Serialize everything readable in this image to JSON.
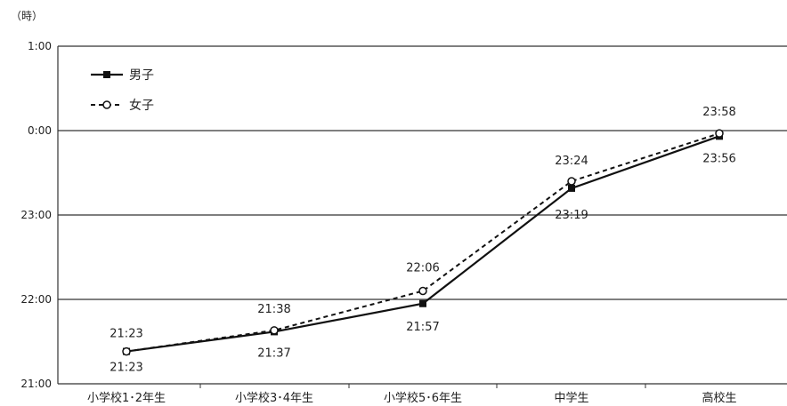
{
  "chart_data": {
    "type": "line",
    "unit_label": "（時）",
    "categories": [
      "小学校1･2年生",
      "小学校3･4年生",
      "小学校5･6年生",
      "中学生",
      "高校生"
    ],
    "y_ticks": [
      "1:00",
      "0:00",
      "23:00",
      "22:00",
      "21:00"
    ],
    "ylim": [
      "21:00",
      "1:00"
    ],
    "grid": true,
    "legend_position": "top-left",
    "series": [
      {
        "name": "男子",
        "style": "solid",
        "marker": "filled-square",
        "color": "#111111",
        "values": [
          "21:23",
          "21:37",
          "21:57",
          "23:19",
          "23:56"
        ]
      },
      {
        "name": "女子",
        "style": "dashed",
        "marker": "open-circle",
        "color": "#111111",
        "values": [
          "21:23",
          "21:38",
          "22:06",
          "23:24",
          "23:58"
        ]
      }
    ]
  }
}
